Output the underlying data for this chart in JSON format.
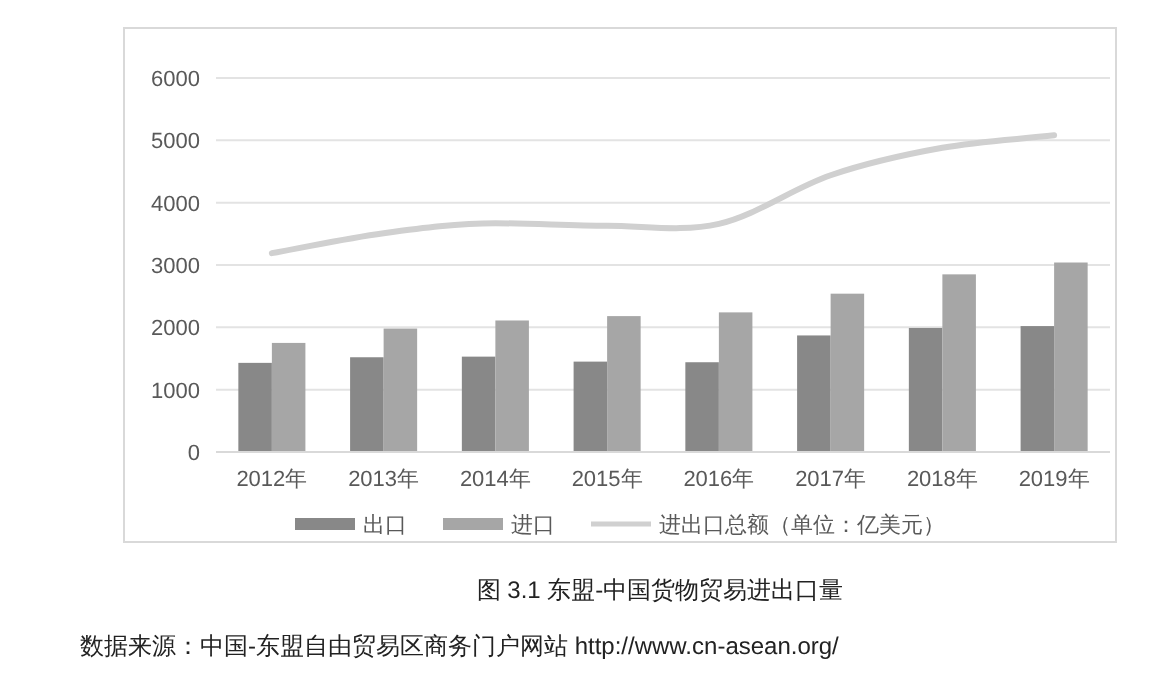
{
  "chart_data": {
    "type": "bar",
    "title": "图 3.1  东盟-中国货物贸易进出口量",
    "categories": [
      "2012年",
      "2013年",
      "2014年",
      "2015年",
      "2016年",
      "2017年",
      "2018年",
      "2019年"
    ],
    "series": [
      {
        "name": "出口",
        "color": "#888888",
        "values": [
          1430,
          1520,
          1530,
          1450,
          1440,
          1870,
          1990,
          2020
        ]
      },
      {
        "name": "进口",
        "color": "#a6a6a6",
        "values": [
          1750,
          1980,
          2110,
          2180,
          2240,
          2540,
          2850,
          3040
        ]
      },
      {
        "name": "进出口总额（单位：亿美元）",
        "type": "line",
        "color": "#d0d0d0",
        "values": [
          3190,
          3510,
          3670,
          3630,
          3660,
          4440,
          4880,
          5080
        ]
      }
    ],
    "ylim": [
      0,
      6000
    ],
    "yticks": [
      0,
      1000,
      2000,
      3000,
      4000,
      5000,
      6000
    ],
    "grid": "y",
    "legend": "bottom",
    "annotations": [
      "数据来源：中国-东盟自由贸易区商务门户网站 http://www.cn-asean.org/"
    ]
  }
}
